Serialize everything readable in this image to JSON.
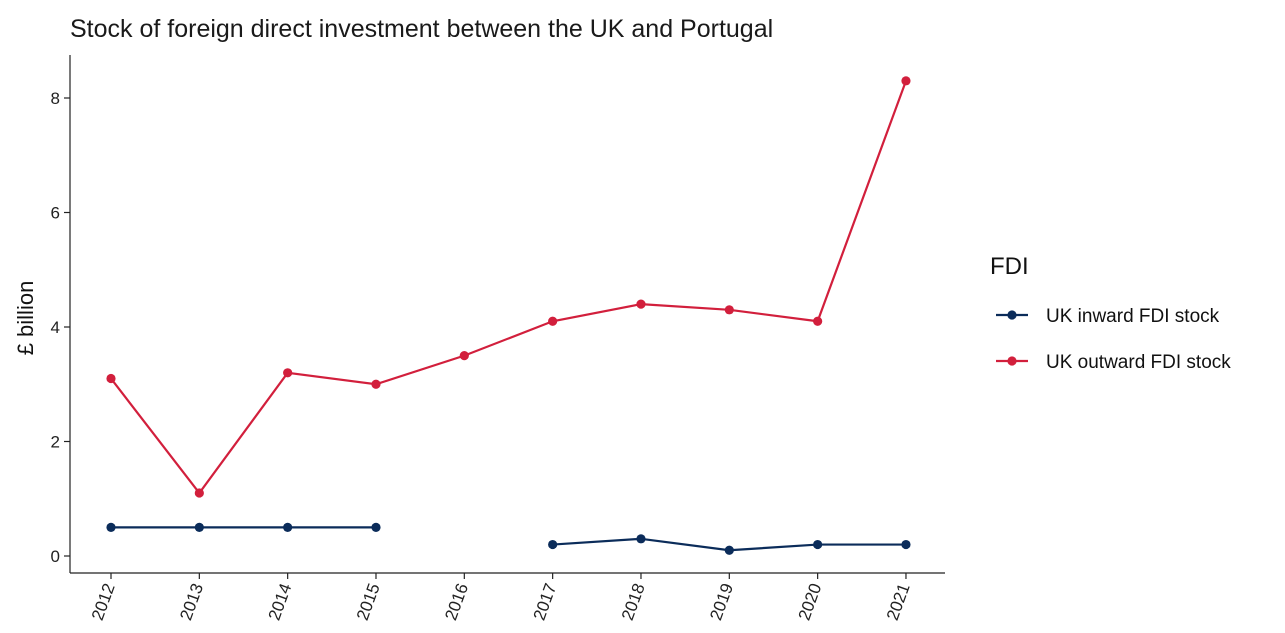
{
  "chart_data": {
    "type": "line",
    "title": "Stock of foreign direct investment between the UK and Portugal",
    "xlabel": "",
    "ylabel": "£ billion",
    "x": [
      2012,
      2013,
      2014,
      2015,
      2016,
      2017,
      2018,
      2019,
      2020,
      2021
    ],
    "ylim": [
      0,
      8.2
    ],
    "yticks": [
      0,
      2,
      4,
      6,
      8
    ],
    "grid": false,
    "legend": {
      "title": "FDI",
      "placement": "right"
    },
    "series": [
      {
        "name": "UK inward FDI stock",
        "color": "#0b2c5a",
        "values": [
          0.5,
          0.5,
          0.5,
          0.5,
          null,
          0.2,
          0.3,
          0.1,
          0.2,
          0.2
        ]
      },
      {
        "name": "UK outward FDI stock",
        "color": "#d21f3c",
        "values": [
          3.1,
          1.1,
          3.2,
          3.0,
          3.5,
          4.1,
          4.4,
          4.3,
          4.1,
          8.3
        ]
      }
    ]
  }
}
